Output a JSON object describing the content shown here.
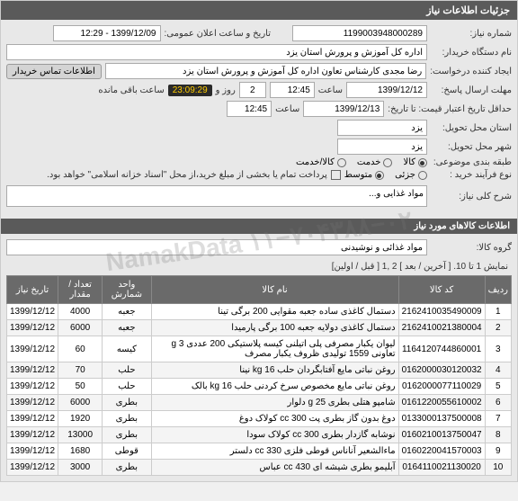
{
  "header": {
    "title": "جزئیات اطلاعات نیاز"
  },
  "form": {
    "need_number_label": "شماره نیاز:",
    "need_number": "1199003948000289",
    "announce_label": "تاریخ و ساعت اعلان عمومی:",
    "announce_value": "1399/12/09 - 12:29",
    "buyer_label": "نام دستگاه خریدار:",
    "buyer_value": "اداره کل آموزش و پرورش استان یزد",
    "creator_label": "ایجاد کننده درخواست:",
    "creator_value": "رضا مجدی کارشناس تعاون اداره کل آموزش و پرورش استان یزد",
    "contact_btn": "اطلاعات تماس خریدار",
    "deadline_label": "مهلت ارسال پاسخ:",
    "deadline_date": "1399/12/12",
    "time_label": "ساعت",
    "deadline_time": "12:45",
    "days_label": "روز و",
    "days_value": "2",
    "timer": "23:09:29",
    "remaining_label": "ساعت باقی مانده",
    "price_deadline_label": "حداقل تاریخ اعتبار قیمت: تا تاریخ:",
    "price_deadline_date": "1399/12/13",
    "price_deadline_time": "12:45",
    "delivery_state_label": "استان محل تحویل:",
    "delivery_state": "یزد",
    "delivery_city_label": "شهر محل تحویل:",
    "delivery_city": "یزد",
    "category_label": "طبقه بندی موضوعی:",
    "category_goods": "کالا",
    "category_service": "خدمت",
    "category_both": "کالا/خدمت",
    "process_label": "نوع فرآیند خرید :",
    "process_small": "جزئی",
    "process_medium": "متوسط",
    "payment_note": "پرداخت تمام یا بخشی از مبلغ خرید،از محل \"اسناد خزانه اسلامی\" خواهد بود.",
    "desc_label": "شرح کلی نیاز:",
    "desc_value": "مواد غذایی و..."
  },
  "items_section": {
    "title": "اطلاعات کالاهای مورد نیاز",
    "group_label": "گروه کالا:",
    "group_value": "مواد غذائی و نوشیدنی",
    "pager_text": "نمایش 1 تا 10. [ آخرین / بعد ] 2 ,1 [ قبل / اولین]"
  },
  "table": {
    "headers": [
      "ردیف",
      "کد کالا",
      "نام کالا",
      "واحد شمارش",
      "تعداد / مقدار",
      "تاریخ نیاز"
    ],
    "rows": [
      [
        "1",
        "2162410035490009",
        "دستمال کاغذی ساده جعبه مقوایی 200 برگی تینا",
        "جعبه",
        "4000",
        "1399/12/12"
      ],
      [
        "2",
        "2162410021380004",
        "دستمال کاغذی دولایه جعبه 100 برگی پارمیدا",
        "جعبه",
        "6000",
        "1399/12/12"
      ],
      [
        "3",
        "1164120744860001",
        "لیوان یکبار مصرفی پلی اتیلنی کیسه پلاستیکی 200 عددی 3 g تعاونی 1559 تولیدی ظروف یکبار مصرف",
        "کیسه",
        "60",
        "1399/12/12"
      ],
      [
        "4",
        "0162000030120032",
        "روغن نباتی مایع آفتابگردان حلب kg 16 نینا",
        "حلب",
        "70",
        "1399/12/12"
      ],
      [
        "5",
        "0162000077110029",
        "روغن نباتی مایع مخصوص سرخ کردنی حلب kg 16 بالک",
        "حلب",
        "50",
        "1399/12/12"
      ],
      [
        "6",
        "0161220055610002",
        "شامپو هتلی بطری g 25 دلوار",
        "بطری",
        "6000",
        "1399/12/12"
      ],
      [
        "7",
        "0133000137500008",
        "دوغ بدون گاز بطری پت cc 300 کولاک دوغ",
        "بطری",
        "1920",
        "1399/12/12"
      ],
      [
        "8",
        "0160210013750047",
        "نوشابه گازدار بطری cc 300 کولاک سودا",
        "بطری",
        "13000",
        "1399/12/12"
      ],
      [
        "9",
        "0160220041570003",
        "ماءالشعیر آناناس قوطی فلزی cc 330 دلستر",
        "قوطی",
        "1680",
        "1399/12/12"
      ],
      [
        "10",
        "0164110021130020",
        "آبلیمو بطری شیشه ای cc 430 عباس",
        "بطری",
        "3000",
        "1399/12/12"
      ]
    ]
  },
  "watermark": "۱۱−۷۰۴۳۸۸−۰۲ NamakData"
}
